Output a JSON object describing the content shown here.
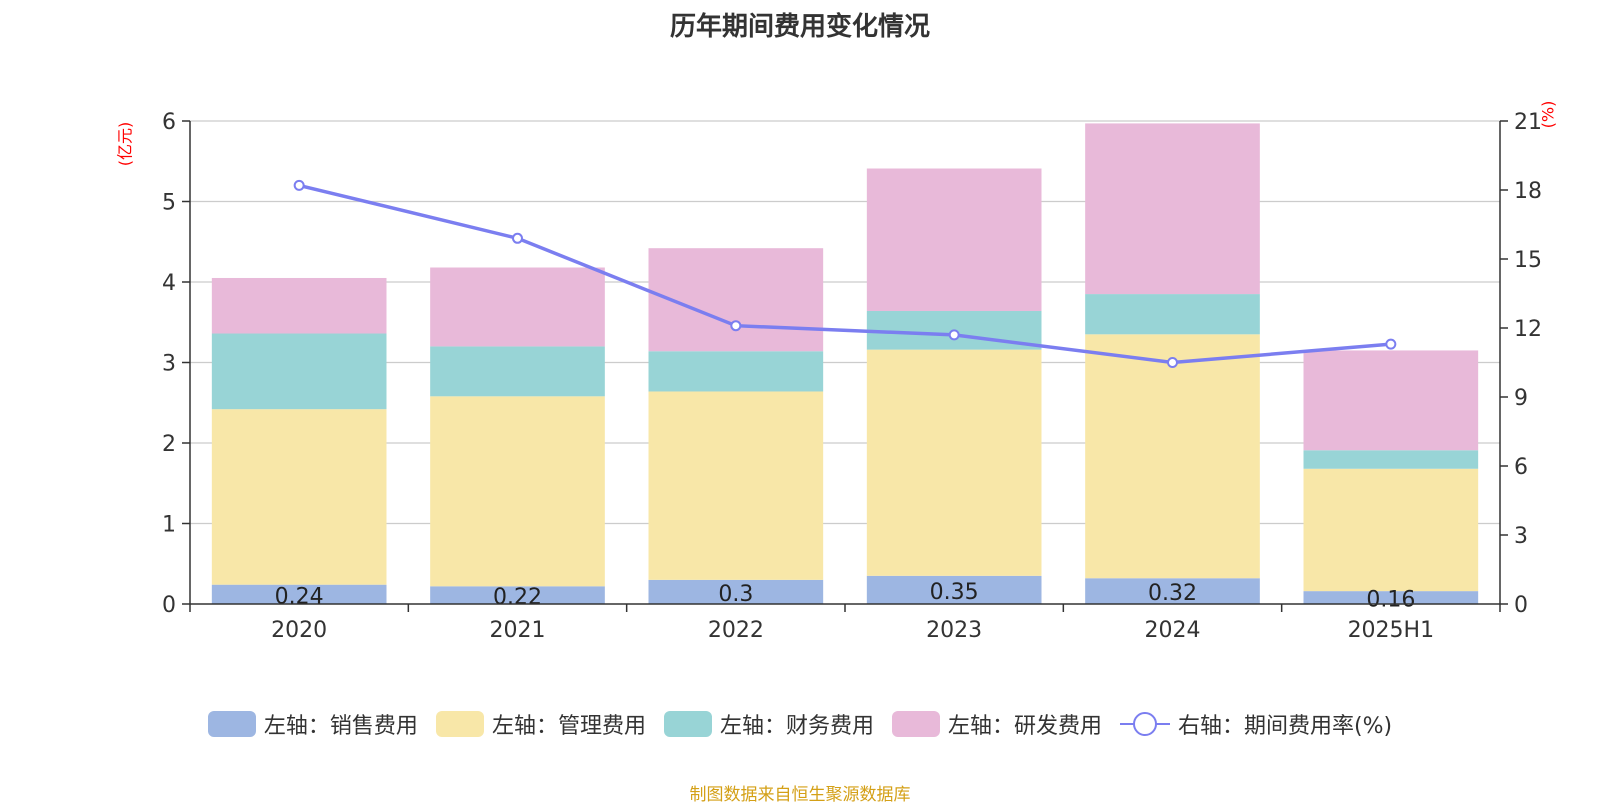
{
  "title": "历年期间费用变化情况",
  "left_unit": "(亿元)",
  "right_unit": "(%)",
  "source": "制图数据来自恒生聚源数据库",
  "colors": {
    "sales": "#9db6e2",
    "admin": "#f8e7a8",
    "finance": "#98d4d6",
    "rd": "#e8b9d9",
    "rate": "#7b7ef0",
    "grid": "#cccccc",
    "axis": "#333333"
  },
  "legend": [
    {
      "label": "左轴：销售费用",
      "kind": "bar",
      "color": "#9db6e2"
    },
    {
      "label": "左轴：管理费用",
      "kind": "bar",
      "color": "#f8e7a8"
    },
    {
      "label": "左轴：财务费用",
      "kind": "bar",
      "color": "#98d4d6"
    },
    {
      "label": "左轴：研发费用",
      "kind": "bar",
      "color": "#e8b9d9"
    },
    {
      "label": "右轴：期间费用率(%)",
      "kind": "line",
      "color": "#7b7ef0"
    }
  ],
  "chart_data": {
    "type": "bar",
    "stacked": true,
    "categories": [
      "2020",
      "2021",
      "2022",
      "2023",
      "2024",
      "2025H1"
    ],
    "series": [
      {
        "name": "左轴：销售费用",
        "axis": "left",
        "values": [
          0.24,
          0.22,
          0.3,
          0.35,
          0.32,
          0.16
        ],
        "labels": [
          "0.24",
          "0.22",
          "0.3",
          "0.35",
          "0.32",
          "0.16"
        ]
      },
      {
        "name": "左轴：管理费用",
        "axis": "left",
        "values": [
          2.18,
          2.36,
          2.34,
          2.81,
          3.03,
          1.52
        ]
      },
      {
        "name": "左轴：财务费用",
        "axis": "left",
        "values": [
          0.94,
          0.62,
          0.5,
          0.48,
          0.5,
          0.23
        ]
      },
      {
        "name": "左轴：研发费用",
        "axis": "left",
        "values": [
          0.69,
          0.98,
          1.28,
          1.77,
          2.12,
          1.24
        ]
      },
      {
        "name": "右轴：期间费用率(%)",
        "axis": "right",
        "type": "line",
        "values": [
          18.2,
          15.9,
          12.1,
          11.7,
          10.5,
          11.3
        ]
      }
    ],
    "left_axis": {
      "min": 0,
      "max": 6,
      "ticks": [
        "0",
        "1",
        "2",
        "3",
        "4",
        "5",
        "6"
      ]
    },
    "right_axis": {
      "min": 0,
      "max": 21,
      "ticks": [
        "0",
        "3",
        "6",
        "9",
        "12",
        "15",
        "18",
        "21"
      ]
    },
    "grid": true,
    "legend_position": "bottom"
  }
}
